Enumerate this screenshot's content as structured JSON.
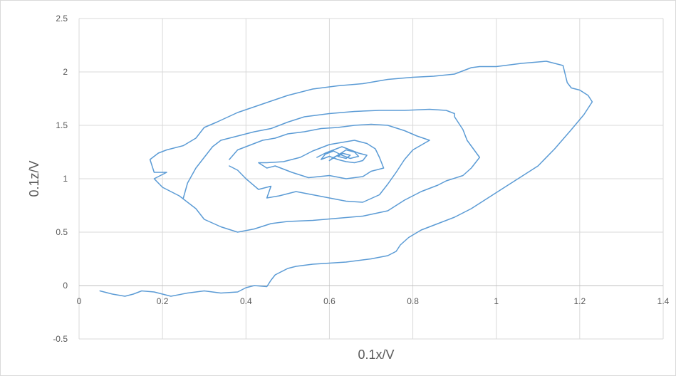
{
  "chart_data": {
    "type": "scatter",
    "mode": "smooth-line",
    "title": "",
    "xlabel": "0.1x/V",
    "ylabel": "0.1z/V",
    "xlim": [
      0,
      1.4
    ],
    "ylim": [
      -0.5,
      2.5
    ],
    "x_ticks": [
      "0",
      "0.2",
      "0.4",
      "0.6",
      "0.8",
      "1",
      "1.2",
      "1.4"
    ],
    "y_ticks": [
      "2.5",
      "2",
      "1.5",
      "1",
      "0.5",
      "0",
      "-0.5"
    ],
    "grid": true,
    "legend": "none",
    "series_color": "#5b9bd5",
    "gridline_color": "#d9d9d9",
    "series": [
      {
        "x": [
          0.05,
          0.08,
          0.11,
          0.13,
          0.15,
          0.18,
          0.22,
          0.26,
          0.3,
          0.34,
          0.38,
          0.4,
          0.42,
          0.45,
          0.46,
          0.47,
          0.48,
          0.5,
          0.52,
          0.56,
          0.6,
          0.64,
          0.7,
          0.74,
          0.76,
          0.77,
          0.79,
          0.82,
          0.86,
          0.9,
          0.94,
          0.98,
          1.02,
          1.06,
          1.1,
          1.14,
          1.18,
          1.21,
          1.23,
          1.22,
          1.2,
          1.18,
          1.17,
          1.16,
          1.12,
          1.06,
          1.0,
          0.96,
          0.94,
          0.9,
          0.85,
          0.8,
          0.74,
          0.68,
          0.62,
          0.56,
          0.5,
          0.44,
          0.38,
          0.33,
          0.3,
          0.28,
          0.25,
          0.21,
          0.19,
          0.17,
          0.18,
          0.21,
          0.2,
          0.18,
          0.2,
          0.24,
          0.28,
          0.3,
          0.34,
          0.38,
          0.42,
          0.46,
          0.5,
          0.56,
          0.62,
          0.68,
          0.74,
          0.78,
          0.82,
          0.86,
          0.88,
          0.92,
          0.94,
          0.96,
          0.93,
          0.92,
          0.9,
          0.9,
          0.88,
          0.84,
          0.78,
          0.72,
          0.66,
          0.6,
          0.54,
          0.5,
          0.46,
          0.42,
          0.38,
          0.34,
          0.32,
          0.3,
          0.28,
          0.26,
          0.25
        ],
        "y": [
          -0.05,
          -0.08,
          -0.1,
          -0.08,
          -0.05,
          -0.06,
          -0.1,
          -0.07,
          -0.05,
          -0.07,
          -0.06,
          -0.02,
          0.0,
          -0.01,
          0.05,
          0.1,
          0.12,
          0.16,
          0.18,
          0.2,
          0.21,
          0.22,
          0.25,
          0.28,
          0.32,
          0.38,
          0.45,
          0.52,
          0.58,
          0.64,
          0.72,
          0.82,
          0.92,
          1.02,
          1.12,
          1.28,
          1.46,
          1.6,
          1.72,
          1.78,
          1.83,
          1.85,
          1.9,
          2.06,
          2.1,
          2.08,
          2.05,
          2.05,
          2.04,
          1.98,
          1.96,
          1.95,
          1.93,
          1.89,
          1.87,
          1.84,
          1.78,
          1.7,
          1.62,
          1.53,
          1.48,
          1.38,
          1.31,
          1.27,
          1.24,
          1.18,
          1.06,
          1.06,
          1.04,
          1.0,
          0.92,
          0.84,
          0.72,
          0.62,
          0.55,
          0.5,
          0.53,
          0.58,
          0.6,
          0.61,
          0.63,
          0.65,
          0.7,
          0.8,
          0.88,
          0.94,
          0.98,
          1.03,
          1.1,
          1.2,
          1.36,
          1.46,
          1.58,
          1.61,
          1.64,
          1.65,
          1.64,
          1.64,
          1.63,
          1.61,
          1.58,
          1.53,
          1.47,
          1.44,
          1.4,
          1.36,
          1.3,
          1.2,
          1.1,
          0.96,
          0.82
        ]
      },
      {
        "x": [
          0.36,
          0.38,
          0.4,
          0.44,
          0.47,
          0.5,
          0.54,
          0.58,
          0.62,
          0.66,
          0.7,
          0.74,
          0.78,
          0.81,
          0.84,
          0.8,
          0.78,
          0.76,
          0.74,
          0.72,
          0.68,
          0.64,
          0.6,
          0.56,
          0.52,
          0.48,
          0.45,
          0.46,
          0.43,
          0.4,
          0.38,
          0.36
        ],
        "y": [
          1.18,
          1.27,
          1.3,
          1.36,
          1.38,
          1.42,
          1.44,
          1.47,
          1.48,
          1.5,
          1.51,
          1.5,
          1.45,
          1.4,
          1.36,
          1.27,
          1.18,
          1.06,
          0.95,
          0.85,
          0.78,
          0.79,
          0.82,
          0.85,
          0.88,
          0.84,
          0.82,
          0.93,
          0.9,
          1.0,
          1.08,
          1.12
        ]
      },
      {
        "x": [
          0.49,
          0.53,
          0.56,
          0.6,
          0.63,
          0.66,
          0.69,
          0.71,
          0.72,
          0.73,
          0.7,
          0.68,
          0.64,
          0.6,
          0.55,
          0.51,
          0.47,
          0.45,
          0.43,
          0.45,
          0.49
        ],
        "y": [
          1.16,
          1.2,
          1.26,
          1.32,
          1.34,
          1.36,
          1.33,
          1.28,
          1.2,
          1.1,
          1.07,
          1.02,
          1.0,
          1.03,
          1.01,
          1.06,
          1.12,
          1.1,
          1.15,
          1.15,
          1.16
        ]
      },
      {
        "x": [
          0.57,
          0.59,
          0.61,
          0.63,
          0.65,
          0.67,
          0.69,
          0.68,
          0.66,
          0.64,
          0.62,
          0.6,
          0.58,
          0.59,
          0.61,
          0.63,
          0.65,
          0.67,
          0.66,
          0.64,
          0.62,
          0.6,
          0.61,
          0.63,
          0.65,
          0.64,
          0.62,
          0.63
        ],
        "y": [
          1.2,
          1.24,
          1.27,
          1.3,
          1.27,
          1.24,
          1.22,
          1.17,
          1.15,
          1.16,
          1.18,
          1.21,
          1.18,
          1.23,
          1.26,
          1.22,
          1.19,
          1.21,
          1.25,
          1.27,
          1.22,
          1.17,
          1.2,
          1.24,
          1.22,
          1.19,
          1.21,
          1.23
        ]
      }
    ]
  }
}
